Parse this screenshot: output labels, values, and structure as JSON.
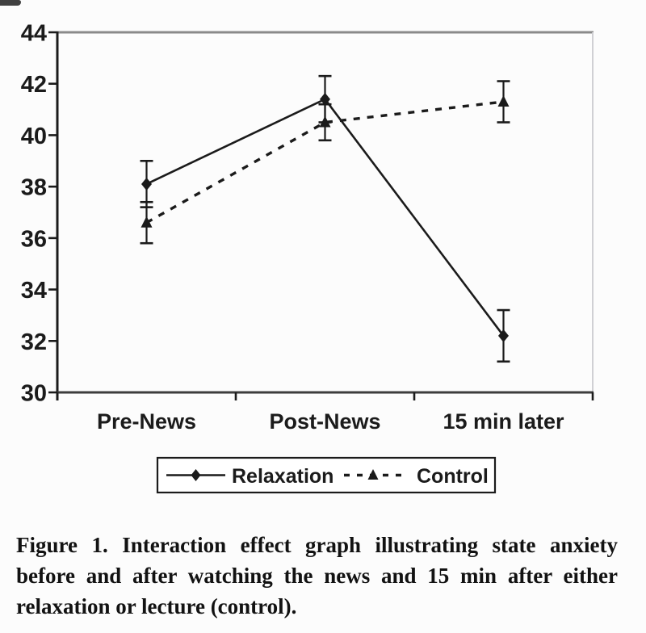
{
  "figure": {
    "background": "#fcfcfc",
    "ink_color": "#1b1b1b",
    "axis_color": "#3d3d3d",
    "frame_top_color": "#8a8a8a",
    "frame_right_color": "#d0d0d4"
  },
  "chart_data": {
    "type": "line",
    "title": "",
    "xlabel": "",
    "ylabel": "",
    "categories": [
      "Pre-News",
      "Post-News",
      "15 min later"
    ],
    "series": [
      {
        "name": "Relaxation",
        "marker": "diamond",
        "line_style": "solid",
        "values": [
          38.1,
          41.4,
          32.2
        ],
        "error_bars": [
          0.9,
          0.9,
          1.0
        ]
      },
      {
        "name": "Control",
        "marker": "triangle",
        "line_style": "dashed",
        "values": [
          36.6,
          40.5,
          41.3
        ],
        "error_bars": [
          0.8,
          0.7,
          0.8
        ]
      }
    ],
    "ylim": [
      30,
      44
    ],
    "yticks": [
      30,
      32,
      34,
      36,
      38,
      40,
      42,
      44
    ],
    "grid": false,
    "legend_position": "bottom-center-boxed"
  },
  "legend": {
    "items": [
      "Relaxation",
      "Control"
    ]
  },
  "caption": {
    "lines": [
      "Figure 1.   Interaction effect graph illustrating state anxiety",
      "before and after watching the news and 15 min after either",
      "relaxation or lecture (control)."
    ]
  }
}
